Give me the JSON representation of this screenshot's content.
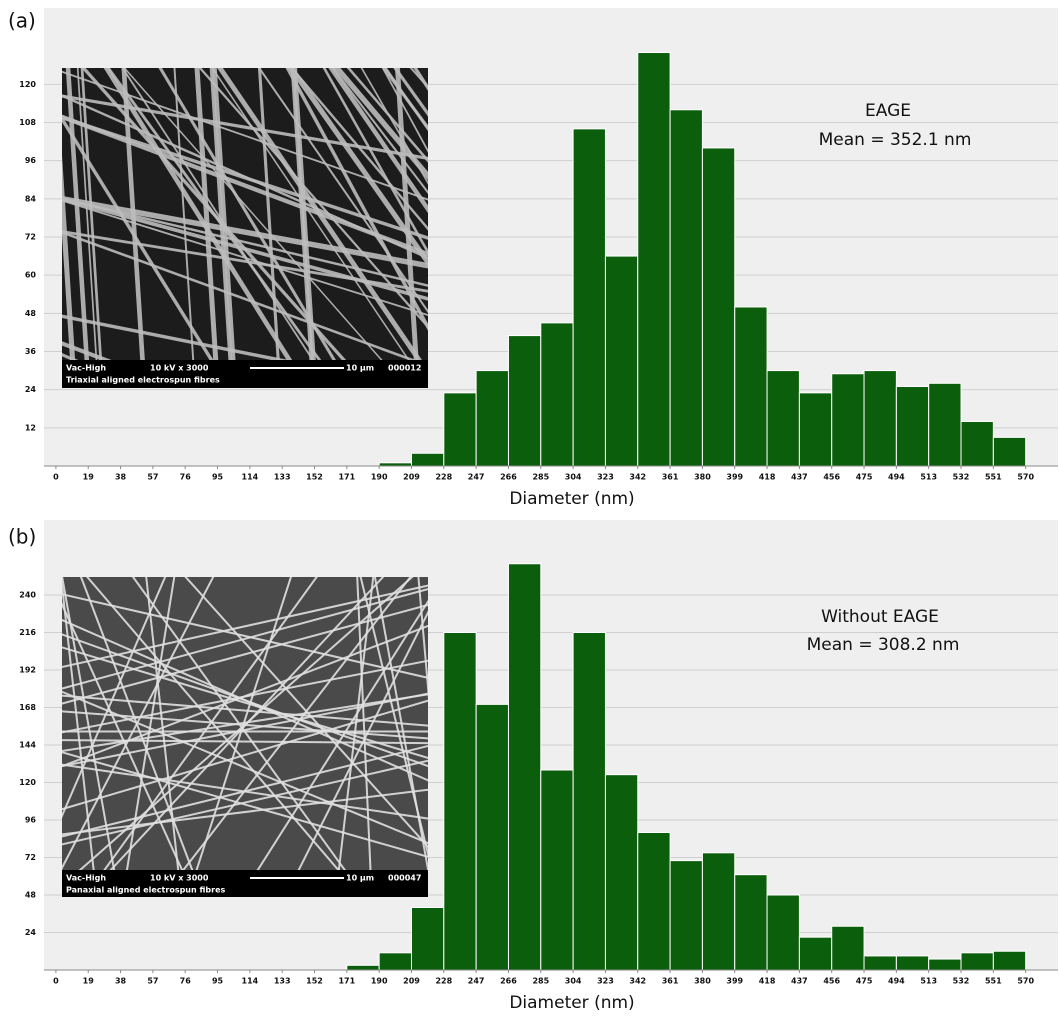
{
  "chart_data": [
    {
      "type": "histogram",
      "panel_label": "(a)",
      "xlabel": "Diameter (nm)",
      "annotations": [
        "EAGE",
        "Mean = 352.1 nm"
      ],
      "inset": {
        "header": [
          "Vac-High",
          "10 kV x 3000",
          "10 µm",
          "000012"
        ],
        "caption": "Triaxial aligned electrospun fibres"
      },
      "bins": [
        190,
        209,
        228,
        247,
        266,
        285,
        304,
        323,
        342,
        361,
        380,
        399,
        418,
        437,
        456,
        475,
        494,
        513,
        532,
        551,
        570
      ],
      "values": [
        1,
        4,
        23,
        30,
        41,
        45,
        106,
        66,
        130,
        112,
        100,
        50,
        30,
        23,
        29,
        30,
        25,
        26,
        14,
        9
      ],
      "color": "#0b5e0b",
      "xlim": [
        -7,
        589
      ],
      "ylim": [
        0,
        144
      ],
      "xticks": [
        0,
        19,
        38,
        57,
        76,
        95,
        114,
        133,
        152,
        171,
        190,
        209,
        228,
        247,
        266,
        285,
        304,
        323,
        342,
        361,
        380,
        399,
        418,
        437,
        456,
        475,
        494,
        513,
        532,
        551,
        570
      ],
      "yticks": [
        12,
        24,
        36,
        48,
        60,
        72,
        84,
        96,
        108,
        120
      ],
      "grid": true
    },
    {
      "type": "histogram",
      "panel_label": "(b)",
      "xlabel": "Diameter (nm)",
      "annotations": [
        "Without EAGE",
        "Mean = 308.2 nm"
      ],
      "inset": {
        "header": [
          "Vac-High",
          "10 kV x 3000",
          "10 µm",
          "000047"
        ],
        "caption": "Panaxial aligned electrospun fibres"
      },
      "bins": [
        171,
        190,
        209,
        228,
        247,
        266,
        285,
        304,
        323,
        342,
        361,
        380,
        399,
        418,
        437,
        456,
        475,
        494,
        513,
        532,
        551,
        570
      ],
      "values": [
        3,
        11,
        40,
        216,
        170,
        260,
        128,
        216,
        125,
        88,
        70,
        75,
        61,
        48,
        21,
        28,
        9,
        9,
        7,
        11,
        12
      ],
      "color": "#0b5e0b",
      "xlim": [
        -7,
        589
      ],
      "ylim": [
        0,
        288
      ],
      "xticks": [
        0,
        19,
        38,
        57,
        76,
        95,
        114,
        133,
        152,
        171,
        190,
        209,
        228,
        247,
        266,
        285,
        304,
        323,
        342,
        361,
        380,
        399,
        418,
        437,
        456,
        475,
        494,
        513,
        532,
        551,
        570
      ],
      "yticks": [
        24,
        48,
        72,
        96,
        120,
        144,
        168,
        192,
        216,
        240
      ],
      "grid": true
    }
  ]
}
